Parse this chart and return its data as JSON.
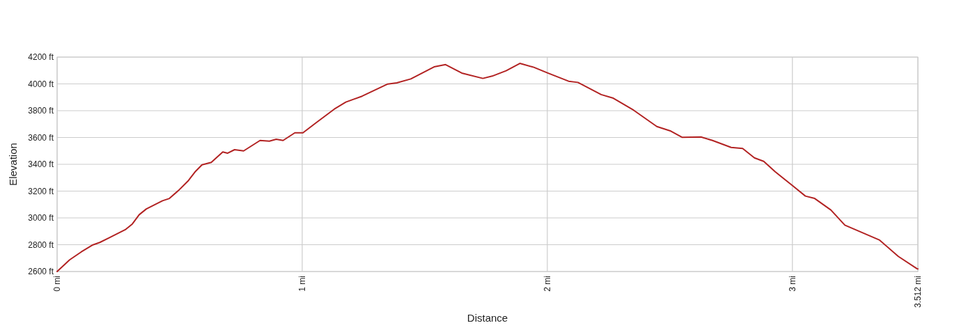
{
  "chart_data": {
    "type": "line",
    "xlabel": "Distance",
    "ylabel": "Elevation",
    "xlim": [
      0,
      3.512
    ],
    "ylim": [
      2600,
      4200
    ],
    "xticks": [
      {
        "value": 0,
        "label": "0 mi"
      },
      {
        "value": 1,
        "label": "1 mi"
      },
      {
        "value": 2,
        "label": "2 mi"
      },
      {
        "value": 3,
        "label": "3 mi"
      },
      {
        "value": 3.512,
        "label": "3.512 mi"
      }
    ],
    "yticks": [
      {
        "value": 2600,
        "label": "2600 ft"
      },
      {
        "value": 2800,
        "label": "2800 ft"
      },
      {
        "value": 3000,
        "label": "3000 ft"
      },
      {
        "value": 3200,
        "label": "3200 ft"
      },
      {
        "value": 3400,
        "label": "3400 ft"
      },
      {
        "value": 3600,
        "label": "3600 ft"
      },
      {
        "value": 3800,
        "label": "3800 ft"
      },
      {
        "value": 4000,
        "label": "4000 ft"
      },
      {
        "value": 4200,
        "label": "4200 ft"
      }
    ],
    "grid": true,
    "series": [
      {
        "color": "#b22222",
        "x": [
          0,
          0.051,
          0.099,
          0.146,
          0.174,
          0.212,
          0.278,
          0.307,
          0.335,
          0.364,
          0.392,
          0.43,
          0.458,
          0.496,
          0.534,
          0.563,
          0.591,
          0.629,
          0.676,
          0.695,
          0.724,
          0.761,
          0.828,
          0.866,
          0.894,
          0.922,
          0.97,
          1.003,
          1.055,
          1.131,
          1.178,
          1.244,
          1.349,
          1.386,
          1.443,
          1.538,
          1.585,
          1.651,
          1.737,
          1.775,
          1.832,
          1.888,
          1.945,
          2.002,
          2.087,
          2.125,
          2.22,
          2.267,
          2.352,
          2.447,
          2.504,
          2.551,
          2.627,
          2.674,
          2.75,
          2.797,
          2.845,
          2.883,
          2.93,
          3.001,
          3.053,
          3.091,
          3.157,
          3.214,
          3.356,
          3.432,
          3.508,
          3.512
        ],
        "values": [
          2600,
          2687,
          2747,
          2799,
          2817,
          2851,
          2912,
          2955,
          3024,
          3067,
          3093,
          3128,
          3145,
          3206,
          3275,
          3344,
          3396,
          3414,
          3492,
          3483,
          3509,
          3500,
          3578,
          3573,
          3587,
          3578,
          3635,
          3635,
          3708,
          3812,
          3864,
          3908,
          3999,
          4008,
          4037,
          4127,
          4144,
          4081,
          4041,
          4058,
          4098,
          4153,
          4124,
          4081,
          4020,
          4011,
          3920,
          3895,
          3804,
          3682,
          3648,
          3601,
          3604,
          3578,
          3526,
          3518,
          3448,
          3422,
          3344,
          3240,
          3163,
          3145,
          3059,
          2946,
          2834,
          2713,
          2621,
          2620
        ]
      }
    ]
  }
}
